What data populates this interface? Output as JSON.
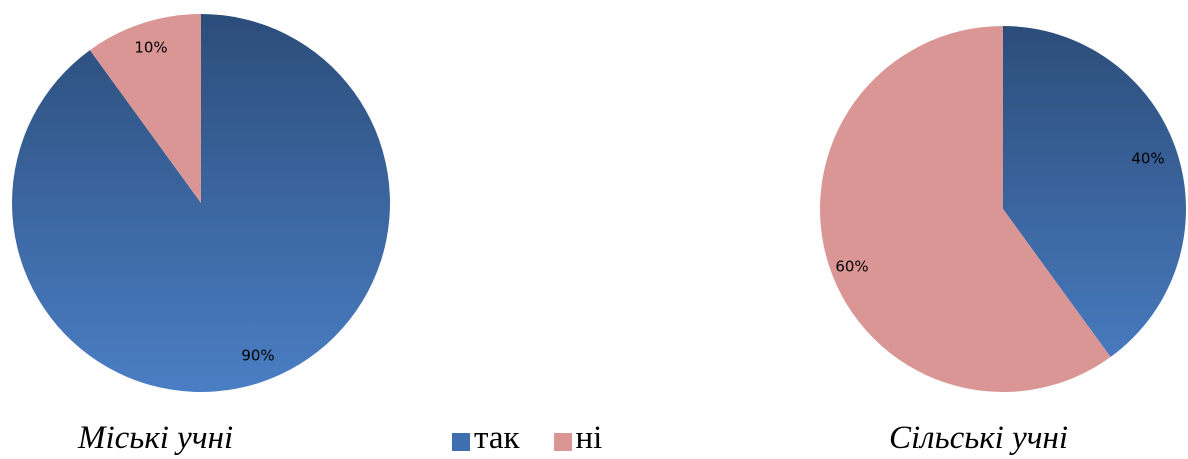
{
  "chart_data": [
    {
      "type": "pie",
      "title": "Міські учні",
      "categories": [
        "так",
        "ні"
      ],
      "values": [
        90,
        10
      ],
      "labels": [
        "90%",
        "10%"
      ]
    },
    {
      "type": "pie",
      "title": "Сільські учні",
      "categories": [
        "так",
        "ні"
      ],
      "values": [
        40,
        60
      ],
      "labels": [
        "40%",
        "60%"
      ]
    }
  ],
  "legend": {
    "placement": "bottom-center",
    "items": [
      {
        "label": "так",
        "color": "#3f6fae"
      },
      {
        "label": "ні",
        "color": "#d99694"
      }
    ]
  },
  "colors": {
    "tak_top": "#2c4d7a",
    "tak_bottom": "#4a7ec4",
    "ni": "#d99694"
  }
}
